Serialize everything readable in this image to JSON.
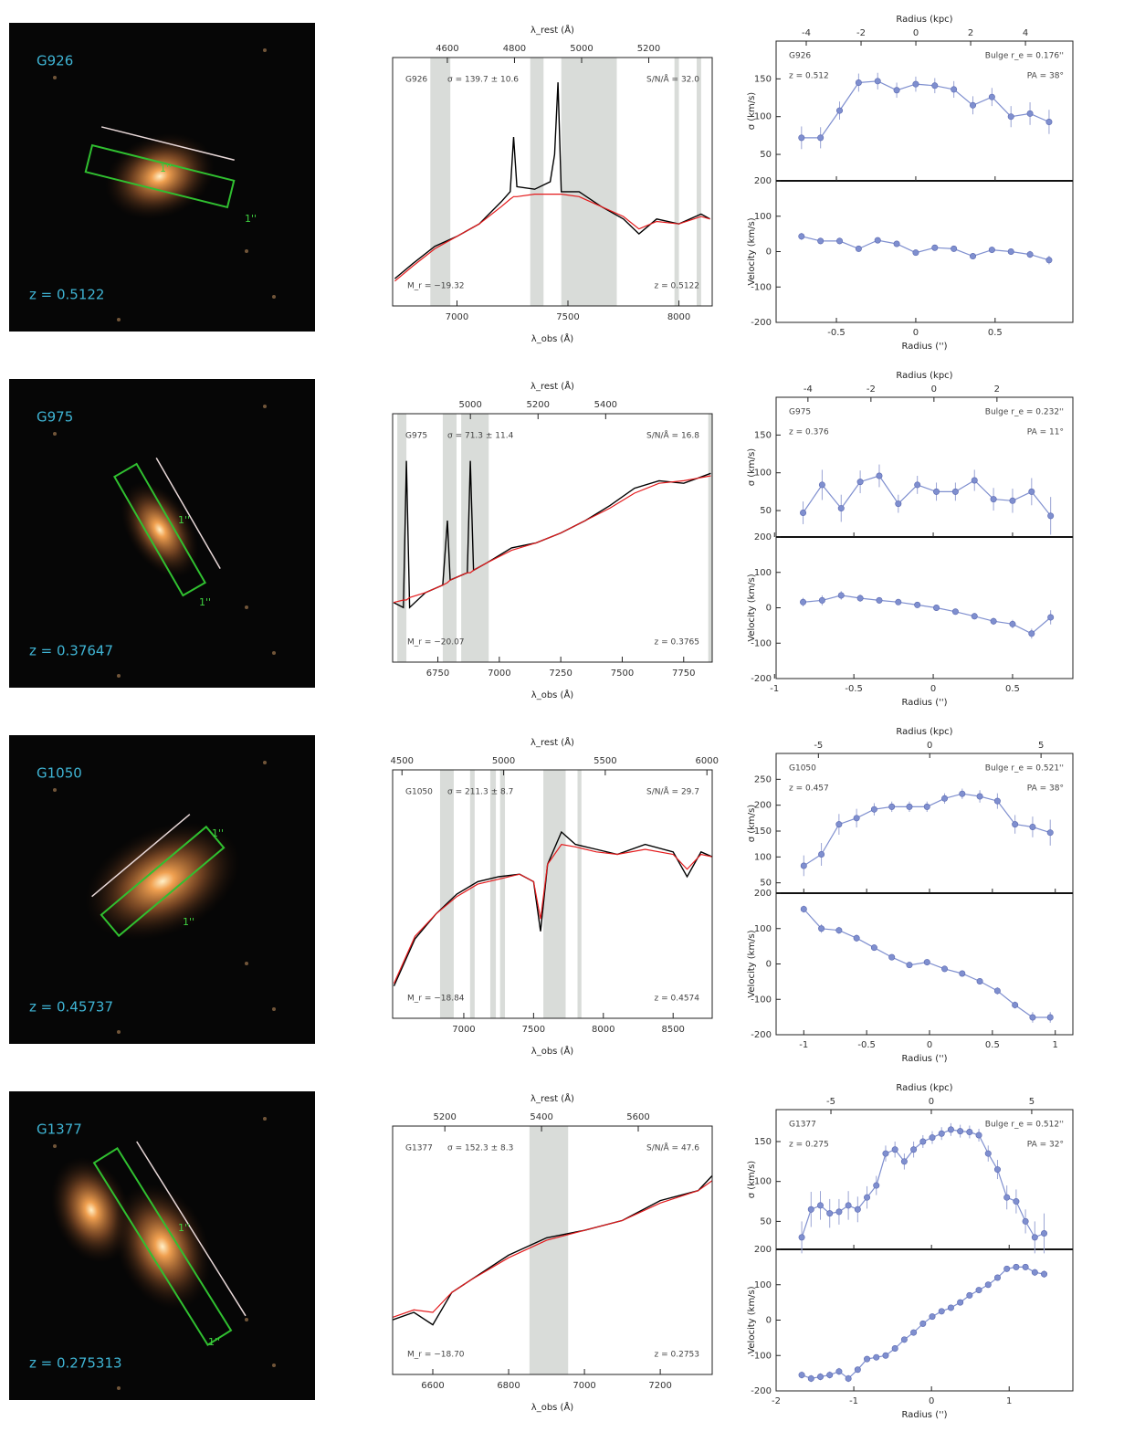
{
  "axis_labels": {
    "rest": "λ_rest (Å)",
    "obs": "λ_obs (Å)",
    "kpc": "Radius (kpc)",
    "arcsec": "Radius ('')",
    "sigma": "σ (km/s)",
    "velocity": "Velocity (km/s)"
  },
  "rows": [
    {
      "image": {
        "name": "G926",
        "redshift": "z = 0.5122",
        "slit_labels": [
          "1''",
          "1''"
        ]
      },
      "spectrum": {
        "type": "line",
        "labels": {
          "id": "G926",
          "sigma": "σ = 139.7 ± 10.6",
          "snr": "S/N/Å = 32.0",
          "mag": "M_r = −19.32",
          "z": "z = 0.5122"
        },
        "xlim": [
          6710,
          8150
        ],
        "xticks": [
          7000,
          7500,
          8000
        ],
        "top_xlim": [
          4437,
          5389
        ],
        "top_xticks": [
          4600,
          4800,
          5000,
          5200
        ],
        "ylim": [
          0,
          1
        ],
        "x": [
          6720,
          6800,
          6900,
          7000,
          7100,
          7200,
          7240,
          7255,
          7270,
          7350,
          7420,
          7440,
          7455,
          7470,
          7550,
          7650,
          7750,
          7820,
          7900,
          8000,
          8100,
          8140
        ],
        "flux": [
          0.11,
          0.17,
          0.24,
          0.28,
          0.33,
          0.42,
          0.46,
          0.68,
          0.48,
          0.47,
          0.5,
          0.61,
          0.9,
          0.46,
          0.46,
          0.4,
          0.35,
          0.29,
          0.35,
          0.33,
          0.37,
          0.35
        ],
        "model": [
          0.1,
          0.16,
          0.23,
          0.28,
          0.33,
          0.4,
          0.43,
          0.44,
          0.44,
          0.45,
          0.45,
          0.45,
          0.45,
          0.45,
          0.44,
          0.4,
          0.36,
          0.31,
          0.34,
          0.33,
          0.36,
          0.35
        ],
        "flux_color": "#000000",
        "model_color": "#e41a1c",
        "masks": [
          [
            6880,
            6970
          ],
          [
            7330,
            7390
          ],
          [
            7470,
            7720
          ],
          [
            7980,
            8000
          ],
          [
            8080,
            8100
          ]
        ]
      },
      "kinematics": {
        "type": "scatter",
        "labels": {
          "id": "G926",
          "z": "z = 0.512",
          "bulge": "Bulge r_e = 0.176''",
          "pa": "PA = 38°"
        },
        "color": "#7f8fcf",
        "xlim": [
          -0.88,
          0.99
        ],
        "xticks": [
          -0.5,
          0,
          0.5
        ],
        "top_xlim": [
          -5.1,
          5.73
        ],
        "top_xticks": [
          -4,
          -2,
          0,
          2,
          4
        ],
        "sigma_ylim": [
          15,
          200
        ],
        "sigma_yticks": [
          50,
          100,
          150
        ],
        "velocity_ylim": [
          -200,
          200
        ],
        "velocity_yticks": [
          -200,
          -100,
          0,
          100,
          200
        ],
        "radius": [
          -0.72,
          -0.6,
          -0.48,
          -0.36,
          -0.24,
          -0.12,
          0,
          0.12,
          0.24,
          0.36,
          0.48,
          0.6,
          0.72,
          0.84
        ],
        "sigma": [
          72,
          72,
          108,
          145,
          147,
          135,
          143,
          141,
          136,
          115,
          126,
          100,
          104,
          93
        ],
        "sigma_err": [
          15,
          14,
          12,
          12,
          11,
          10,
          10,
          10,
          11,
          12,
          12,
          14,
          15,
          16
        ],
        "velocity": [
          43,
          30,
          30,
          8,
          32,
          22,
          -3,
          11,
          8,
          -13,
          5,
          0,
          -8,
          -24
        ],
        "velocity_err": [
          10,
          9,
          9,
          8,
          8,
          8,
          8,
          8,
          8,
          8,
          9,
          9,
          10,
          12
        ]
      }
    },
    {
      "image": {
        "name": "G975",
        "redshift": "z = 0.37647",
        "slit_labels": [
          "1''",
          "1''"
        ]
      },
      "spectrum": {
        "type": "line",
        "labels": {
          "id": "G975",
          "sigma": "σ = 71.3 ± 11.4",
          "snr": "S/N/Å = 16.8",
          "mag": "M_r = −20.07",
          "z": "z = 0.3765"
        },
        "xlim": [
          6566,
          7866
        ],
        "xticks": [
          6750,
          7000,
          7250,
          7500,
          7750
        ],
        "top_xlim": [
          4770,
          5715
        ],
        "top_xticks": [
          5000,
          5200,
          5400
        ],
        "ylim": [
          0,
          1
        ],
        "x": [
          6570,
          6610,
          6622,
          6635,
          6700,
          6770,
          6789,
          6800,
          6870,
          6882,
          6895,
          6950,
          7050,
          7150,
          7250,
          7350,
          7450,
          7550,
          7650,
          7750,
          7860
        ],
        "flux": [
          0.24,
          0.22,
          0.81,
          0.22,
          0.28,
          0.31,
          0.57,
          0.33,
          0.36,
          0.81,
          0.37,
          0.4,
          0.46,
          0.48,
          0.52,
          0.57,
          0.63,
          0.7,
          0.73,
          0.72,
          0.76
        ],
        "model": [
          0.24,
          0.25,
          0.25,
          0.26,
          0.28,
          0.31,
          0.32,
          0.33,
          0.36,
          0.36,
          0.37,
          0.4,
          0.45,
          0.48,
          0.52,
          0.57,
          0.62,
          0.68,
          0.72,
          0.73,
          0.75
        ],
        "flux_color": "#000000",
        "model_color": "#e41a1c",
        "masks": [
          [
            6585,
            6622
          ],
          [
            6770,
            6826
          ],
          [
            6845,
            6957
          ],
          [
            7850,
            7866
          ]
        ]
      },
      "kinematics": {
        "type": "scatter",
        "labels": {
          "id": "G975",
          "z": "z = 0.376",
          "bulge": "Bulge r_e = 0.232''",
          "pa": "PA = 11°"
        },
        "color": "#7f8fcf",
        "xlim": [
          -0.99,
          0.88
        ],
        "xticks": [
          -1,
          -0.5,
          0,
          0.5
        ],
        "top_xlim": [
          -5.01,
          4.41
        ],
        "top_xticks": [
          -4,
          -2,
          0,
          2
        ],
        "sigma_ylim": [
          15,
          200
        ],
        "sigma_yticks": [
          50,
          100,
          150
        ],
        "velocity_ylim": [
          -200,
          200
        ],
        "velocity_yticks": [
          -200,
          -100,
          0,
          100,
          200
        ],
        "radius": [
          -0.82,
          -0.7,
          -0.58,
          -0.46,
          -0.34,
          -0.22,
          -0.1,
          0.02,
          0.14,
          0.26,
          0.38,
          0.5,
          0.62,
          0.74
        ],
        "sigma": [
          47,
          84,
          53,
          88,
          96,
          59,
          84,
          75,
          75,
          90,
          65,
          63,
          75,
          43
        ],
        "sigma_err": [
          15,
          20,
          18,
          15,
          15,
          12,
          12,
          12,
          12,
          14,
          15,
          16,
          18,
          25
        ],
        "velocity": [
          16,
          21,
          35,
          27,
          21,
          16,
          8,
          0,
          -11,
          -24,
          -38,
          -46,
          -73,
          -27
        ],
        "velocity_err": [
          12,
          14,
          12,
          10,
          9,
          8,
          8,
          8,
          8,
          9,
          10,
          12,
          14,
          20
        ]
      }
    },
    {
      "image": {
        "name": "G1050",
        "redshift": "z = 0.45737",
        "slit_labels": [
          "1''",
          "1''"
        ]
      },
      "spectrum": {
        "type": "line",
        "labels": {
          "id": "G1050",
          "sigma": "σ = 211.3 ± 8.7",
          "snr": "S/N/Å = 29.7",
          "mag": "M_r = −18.84",
          "z": "z = 0.4574"
        },
        "xlim": [
          6490,
          8780
        ],
        "xticks": [
          7000,
          7500,
          8000,
          8500
        ],
        "top_xlim": [
          4454,
          6026
        ],
        "top_xticks": [
          4500,
          5000,
          5500,
          6000
        ],
        "ylim": [
          0,
          1
        ],
        "x": [
          6500,
          6650,
          6800,
          6950,
          7100,
          7250,
          7400,
          7500,
          7550,
          7600,
          7700,
          7800,
          7950,
          8100,
          8300,
          8500,
          8600,
          8700,
          8780
        ],
        "flux": [
          0.13,
          0.32,
          0.42,
          0.5,
          0.55,
          0.57,
          0.58,
          0.55,
          0.35,
          0.62,
          0.75,
          0.7,
          0.68,
          0.66,
          0.7,
          0.67,
          0.57,
          0.67,
          0.65
        ],
        "model": [
          0.14,
          0.33,
          0.42,
          0.49,
          0.54,
          0.56,
          0.58,
          0.55,
          0.4,
          0.62,
          0.7,
          0.69,
          0.67,
          0.66,
          0.68,
          0.66,
          0.6,
          0.66,
          0.65
        ],
        "flux_color": "#000000",
        "model_color": "#e41a1c",
        "masks": [
          [
            6830,
            6928
          ],
          [
            7045,
            7078
          ],
          [
            7190,
            7230
          ],
          [
            7260,
            7295
          ],
          [
            7570,
            7730
          ],
          [
            7815,
            7843
          ]
        ]
      },
      "kinematics": {
        "type": "scatter",
        "labels": {
          "id": "G1050",
          "z": "z = 0.457",
          "bulge": "Bulge r_e = 0.521''",
          "pa": "PA = 38°"
        },
        "color": "#7f8fcf",
        "xlim": [
          -1.22,
          1.14
        ],
        "xticks": [
          -1,
          -0.5,
          0,
          0.5,
          1
        ],
        "top_xlim": [
          -6.9,
          6.43
        ],
        "top_xticks": [
          -5,
          0,
          5
        ],
        "sigma_ylim": [
          30,
          300
        ],
        "sigma_yticks": [
          50,
          100,
          150,
          200,
          250
        ],
        "velocity_ylim": [
          -200,
          200
        ],
        "velocity_yticks": [
          -200,
          -100,
          0,
          100,
          200
        ],
        "radius": [
          -1.0,
          -0.86,
          -0.72,
          -0.58,
          -0.44,
          -0.3,
          -0.16,
          -0.02,
          0.12,
          0.26,
          0.4,
          0.54,
          0.68,
          0.82,
          0.96
        ],
        "sigma": [
          83,
          105,
          163,
          175,
          192,
          197,
          197,
          197,
          213,
          222,
          217,
          208,
          163,
          158,
          147
        ],
        "sigma_err": [
          20,
          22,
          20,
          18,
          12,
          10,
          10,
          10,
          10,
          10,
          12,
          15,
          18,
          20,
          25
        ],
        "velocity": [
          155,
          100,
          95,
          73,
          46,
          19,
          -3,
          5,
          -14,
          -27,
          -49,
          -76,
          -116,
          -151,
          -151
        ],
        "velocity_err": [
          10,
          12,
          10,
          10,
          8,
          8,
          8,
          8,
          8,
          8,
          8,
          10,
          10,
          15,
          15
        ]
      }
    },
    {
      "image": {
        "name": "G1377",
        "redshift": "z = 0.275313",
        "slit_labels": [
          "1''",
          "1''"
        ]
      },
      "spectrum": {
        "type": "line",
        "labels": {
          "id": "G1377",
          "sigma": "σ = 152.3 ± 8.3",
          "snr": "S/N/Å = 47.6",
          "mag": "M_r = −18.70",
          "z": "z = 0.2753"
        },
        "xlim": [
          6494,
          7337
        ],
        "xticks": [
          6600,
          6800,
          7000,
          7200
        ],
        "top_xlim": [
          5092,
          5753
        ],
        "top_xticks": [
          5200,
          5400,
          5600
        ],
        "ylim": [
          0,
          1
        ],
        "x": [
          6494,
          6550,
          6600,
          6650,
          6700,
          6800,
          6900,
          7000,
          7100,
          7200,
          7300,
          7337
        ],
        "flux": [
          0.22,
          0.25,
          0.2,
          0.33,
          0.38,
          0.48,
          0.55,
          0.58,
          0.62,
          0.7,
          0.74,
          0.8
        ],
        "model": [
          0.23,
          0.26,
          0.25,
          0.33,
          0.38,
          0.47,
          0.54,
          0.58,
          0.62,
          0.69,
          0.74,
          0.78
        ],
        "flux_color": "#000000",
        "model_color": "#e41a1c",
        "masks": [
          [
            6855,
            6957
          ]
        ]
      },
      "kinematics": {
        "type": "scatter",
        "labels": {
          "id": "G1377",
          "z": "z = 0.275",
          "bulge": "Bulge r_e = 0.512''",
          "pa": "PA = 32°"
        },
        "color": "#7f8fcf",
        "xlim": [
          -2.0,
          1.82
        ],
        "xticks": [
          -2,
          -1,
          0,
          1
        ],
        "top_xlim": [
          -7.73,
          7.05
        ],
        "top_xticks": [
          -5,
          0,
          5
        ],
        "sigma_ylim": [
          15,
          190
        ],
        "sigma_yticks": [
          50,
          100,
          150
        ],
        "velocity_ylim": [
          -200,
          200
        ],
        "velocity_yticks": [
          -200,
          -100,
          0,
          100,
          200
        ],
        "radius": [
          -1.67,
          -1.55,
          -1.43,
          -1.31,
          -1.19,
          -1.07,
          -0.95,
          -0.83,
          -0.71,
          -0.59,
          -0.47,
          -0.35,
          -0.23,
          -0.11,
          0.01,
          0.13,
          0.25,
          0.37,
          0.49,
          0.61,
          0.73,
          0.85,
          0.97,
          1.09,
          1.21,
          1.33,
          1.45
        ],
        "sigma": [
          30,
          65,
          70,
          60,
          62,
          70,
          65,
          80,
          95,
          135,
          140,
          125,
          140,
          150,
          155,
          160,
          165,
          163,
          162,
          158,
          135,
          115,
          80,
          75,
          50,
          30,
          35
        ],
        "sigma_err": [
          20,
          22,
          18,
          18,
          16,
          18,
          16,
          14,
          12,
          10,
          10,
          10,
          10,
          8,
          8,
          8,
          8,
          8,
          8,
          8,
          10,
          12,
          15,
          15,
          15,
          20,
          25
        ],
        "velocity": [
          -155,
          -165,
          -160,
          -155,
          -145,
          -165,
          -140,
          -110,
          -105,
          -100,
          -80,
          -55,
          -35,
          -10,
          10,
          25,
          35,
          50,
          70,
          85,
          100,
          120,
          145,
          150,
          150,
          135,
          130
        ],
        "velocity_err": [
          10,
          10,
          10,
          10,
          10,
          10,
          8,
          8,
          8,
          8,
          8,
          8,
          8,
          8,
          8,
          8,
          8,
          8,
          8,
          8,
          8,
          8,
          8,
          8,
          8,
          10,
          10
        ]
      }
    }
  ]
}
